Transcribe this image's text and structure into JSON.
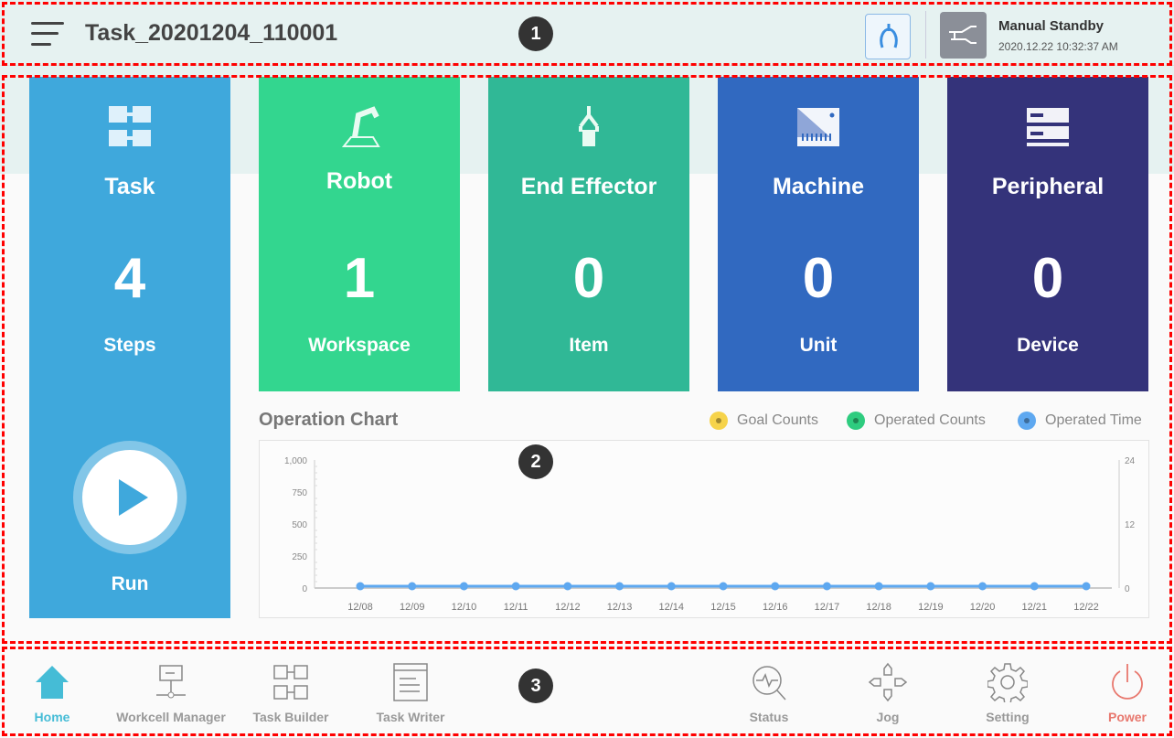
{
  "header": {
    "title": "Task_20201204_110001",
    "mode": "Manual Standby",
    "datetime": "2020.12.22 10:32:37 AM"
  },
  "cards": [
    {
      "label": "Task",
      "value": "4",
      "sub": "Steps",
      "color": "#3fa8dc",
      "icon": "task-icon",
      "run_label": "Run"
    },
    {
      "label": "Robot",
      "value": "1",
      "sub": "Workspace",
      "color": "#33d68f",
      "icon": "robot-arm-icon"
    },
    {
      "label": "End Effector",
      "value": "0",
      "sub": "Item",
      "color": "#30b896",
      "icon": "gripper-icon"
    },
    {
      "label": "Machine",
      "value": "0",
      "sub": "Unit",
      "color": "#3169c0",
      "icon": "machine-icon"
    },
    {
      "label": "Peripheral",
      "value": "0",
      "sub": "Device",
      "color": "#34337a",
      "icon": "peripheral-icon"
    }
  ],
  "chart_data": {
    "type": "line",
    "title": "Operation Chart",
    "categories": [
      "12/08",
      "12/09",
      "12/10",
      "12/11",
      "12/12",
      "12/13",
      "12/14",
      "12/15",
      "12/16",
      "12/17",
      "12/18",
      "12/19",
      "12/20",
      "12/21",
      "12/22"
    ],
    "legend": [
      {
        "name": "Goal Counts",
        "color": "#f6d34a"
      },
      {
        "name": "Operated Counts",
        "color": "#2ecc7f"
      },
      {
        "name": "Operated Time",
        "color": "#5ea8f0"
      }
    ],
    "series": [
      {
        "name": "Operated Time",
        "color": "#5ea8f0",
        "values": [
          0,
          0,
          0,
          0,
          0,
          0,
          0,
          0,
          0,
          0,
          0,
          0,
          0,
          0,
          0
        ]
      }
    ],
    "y_left": {
      "range": [
        0,
        1000
      ],
      "ticks": [
        "0",
        "250",
        "500",
        "750",
        "1,000"
      ]
    },
    "y_right": {
      "range": [
        0,
        24
      ],
      "ticks": [
        "0",
        "12",
        "24"
      ]
    },
    "legend_position": "top-right"
  },
  "nav": [
    {
      "label": "Home",
      "icon": "home-icon",
      "active": true
    },
    {
      "label": "Workcell Manager",
      "icon": "workcell-icon"
    },
    {
      "label": "Task Builder",
      "icon": "task-builder-icon"
    },
    {
      "label": "Task Writer",
      "icon": "task-writer-icon"
    },
    {
      "label": "Status",
      "icon": "status-icon"
    },
    {
      "label": "Jog",
      "icon": "jog-icon"
    },
    {
      "label": "Setting",
      "icon": "gear-icon"
    },
    {
      "label": "Power",
      "icon": "power-icon"
    }
  ],
  "annotations": [
    "1",
    "2",
    "3"
  ]
}
